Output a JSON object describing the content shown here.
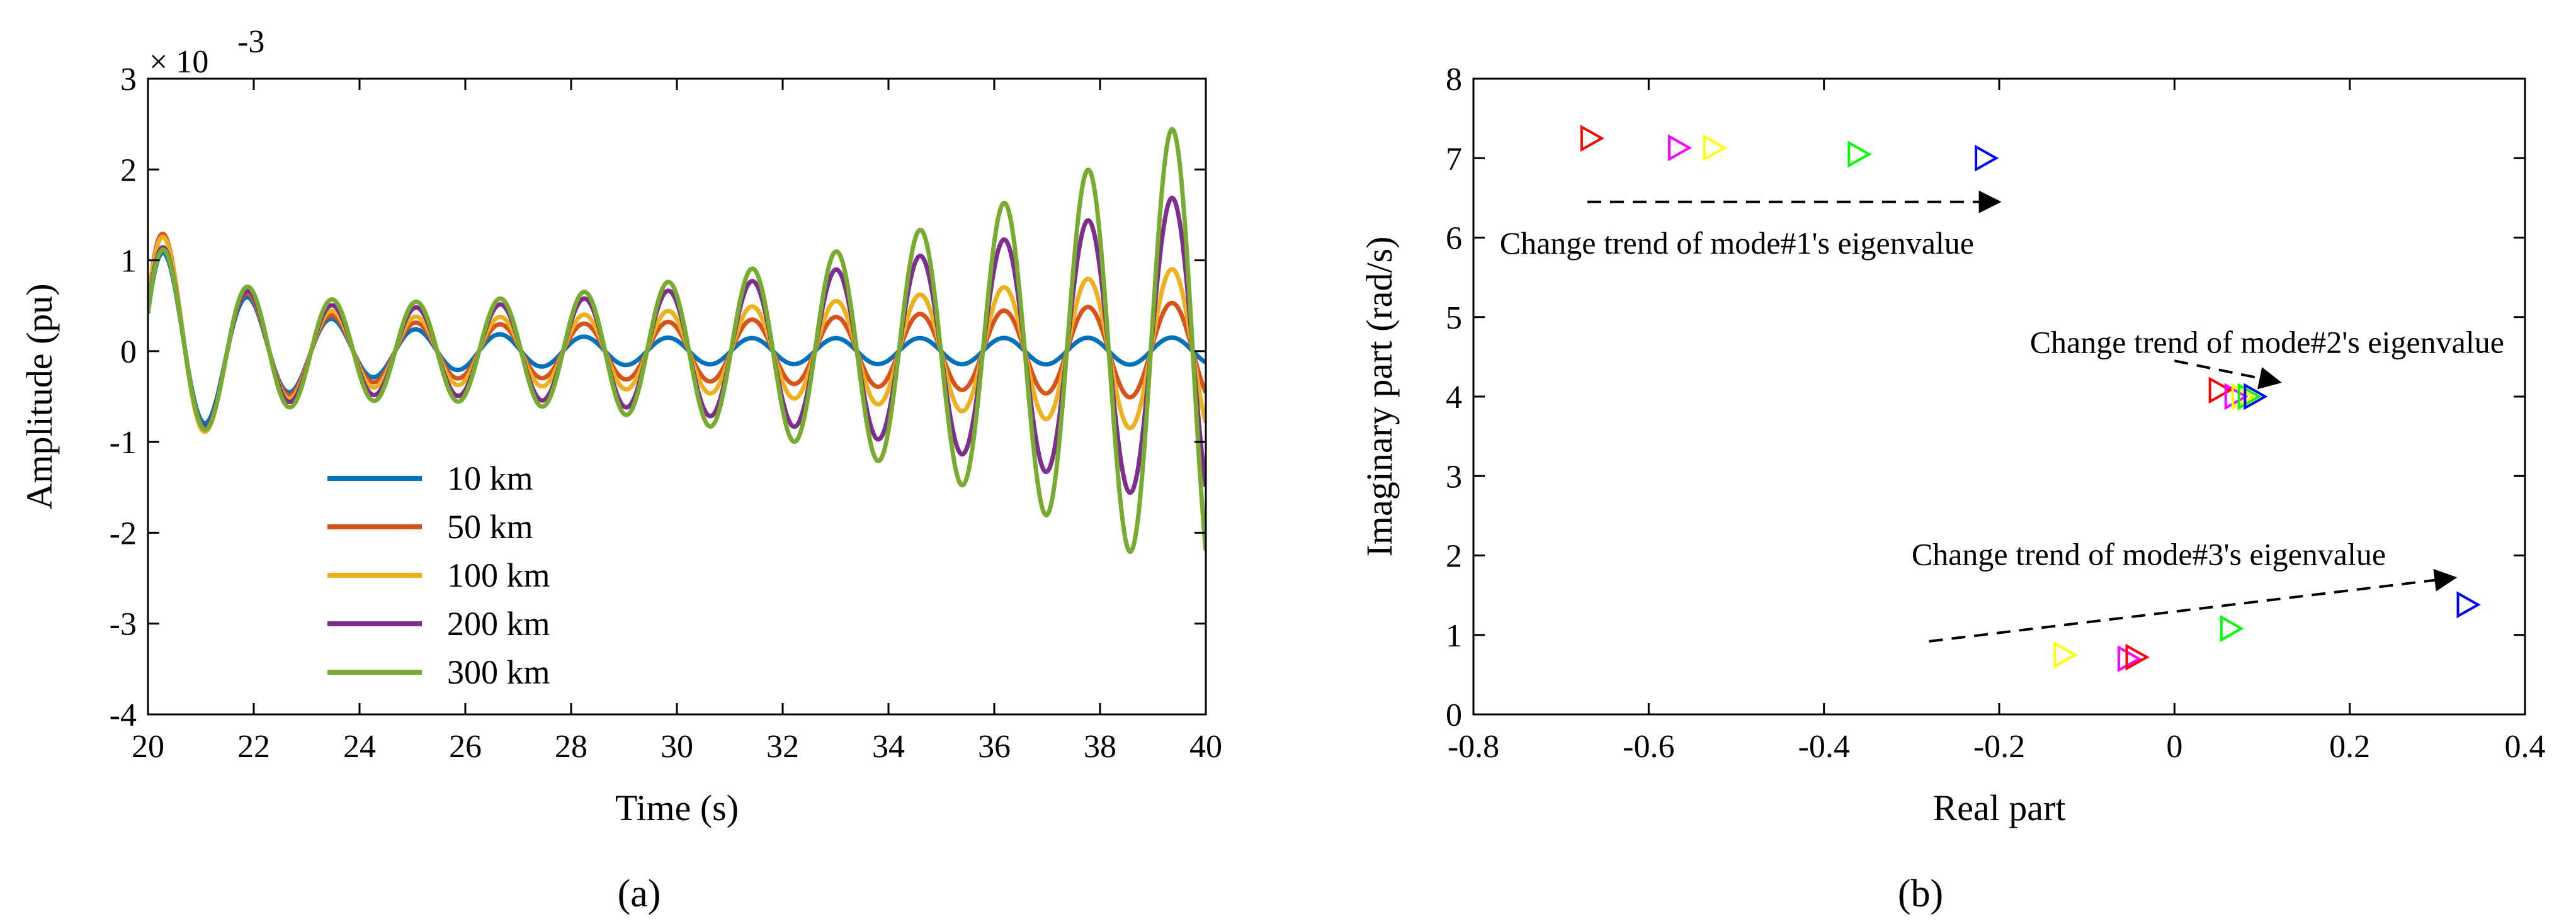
{
  "chart_data": [
    {
      "type": "line",
      "panel_label": "(a)",
      "title": "",
      "xlabel": "Time (s)",
      "ylabel": "Amplitude (pu)",
      "y_exponent_label": "× 10",
      "y_exponent_power": "-3",
      "xlim": [
        20,
        40
      ],
      "ylim": [
        -4,
        3
      ],
      "xticks": [
        20,
        22,
        24,
        26,
        28,
        30,
        32,
        34,
        36,
        38,
        40
      ],
      "yticks": [
        -4,
        -3,
        -2,
        -1,
        0,
        1,
        2,
        3
      ],
      "grid": false,
      "legend_position": "lower-left",
      "series": [
        {
          "name": "10 km",
          "color": "#0072BD",
          "amplitude_start": 1.1,
          "amplitude_end": 0.15,
          "amplitude_min": 0.12,
          "frequency_hz": 0.63,
          "decay_per_s": 0.45,
          "growth_per_s": 0.0,
          "phase": 0.0
        },
        {
          "name": "50 km",
          "color": "#D95319",
          "amplitude_start": 1.3,
          "amplitude_end": 0.55,
          "amplitude_min": 0.2,
          "frequency_hz": 0.63,
          "decay_per_s": 0.6,
          "growth_per_s": 0.055,
          "phase": 0.0
        },
        {
          "name": "100 km",
          "color": "#EDB120",
          "amplitude_start": 1.2,
          "amplitude_end": 0.95,
          "amplitude_min": 0.25,
          "frequency_hz": 0.63,
          "decay_per_s": 0.6,
          "growth_per_s": 0.075,
          "phase": 0.0
        },
        {
          "name": "200 km",
          "color": "#7E2F8E",
          "amplitude_start": 1.0,
          "amplitude_end": 1.8,
          "amplitude_min": 0.3,
          "frequency_hz": 0.63,
          "decay_per_s": 0.6,
          "growth_per_s": 0.095,
          "phase": 0.0
        },
        {
          "name": "300 km",
          "color": "#77AC30",
          "amplitude_start": 0.8,
          "amplitude_end": 2.65,
          "amplitude_min": 0.45,
          "frequency_hz": 0.63,
          "decay_per_s": 0.6,
          "growth_per_s": 0.105,
          "phase": 0.0
        }
      ]
    },
    {
      "type": "scatter",
      "panel_label": "(b)",
      "title": "",
      "xlabel": "Real part",
      "ylabel": "Imaginary part (rad/s)",
      "xlim": [
        -0.8,
        0.4
      ],
      "ylim": [
        0,
        8
      ],
      "xticks": [
        -0.8,
        -0.6,
        -0.4,
        -0.2,
        0,
        0.2,
        0.4
      ],
      "xtick_labels": [
        "-0.8",
        "-0.6",
        "-0.4",
        "-0.2",
        "0",
        "0.2",
        "0.4"
      ],
      "yticks": [
        0,
        1,
        2,
        3,
        4,
        5,
        6,
        7,
        8
      ],
      "grid": false,
      "marker": "triangle-right",
      "points": [
        {
          "x": -0.665,
          "y": 7.25,
          "color": "#FF0000"
        },
        {
          "x": -0.565,
          "y": 7.13,
          "color": "#FF00FF"
        },
        {
          "x": -0.525,
          "y": 7.13,
          "color": "#FFFF00"
        },
        {
          "x": -0.36,
          "y": 7.05,
          "color": "#00FF00"
        },
        {
          "x": -0.215,
          "y": 7.0,
          "color": "#0000FF"
        },
        {
          "x": 0.052,
          "y": 4.08,
          "color": "#FF0000"
        },
        {
          "x": 0.07,
          "y": 4.0,
          "color": "#FF00FF"
        },
        {
          "x": 0.078,
          "y": 4.0,
          "color": "#FFFF00"
        },
        {
          "x": 0.085,
          "y": 4.0,
          "color": "#00FF00"
        },
        {
          "x": 0.092,
          "y": 4.0,
          "color": "#0000FF"
        },
        {
          "x": -0.125,
          "y": 0.75,
          "color": "#FFFF00"
        },
        {
          "x": -0.052,
          "y": 0.7,
          "color": "#FF00FF"
        },
        {
          "x": -0.043,
          "y": 0.72,
          "color": "#FF0000"
        },
        {
          "x": 0.065,
          "y": 1.08,
          "color": "#00FF00"
        },
        {
          "x": 0.335,
          "y": 1.38,
          "color": "#0000FF"
        }
      ],
      "annotations": [
        {
          "text": "Change trend of mode#1's eigenvalue",
          "text_x": -0.77,
          "text_y": 5.8,
          "arrow_from": [
            -0.67,
            6.45
          ],
          "arrow_to": [
            -0.2,
            6.45
          ]
        },
        {
          "text": "Change trend of mode#2's eigenvalue",
          "text_x": -0.165,
          "text_y": 4.55,
          "arrow_from": [
            0.0,
            4.45
          ],
          "arrow_to": [
            0.12,
            4.18
          ]
        },
        {
          "text": "Change trend of mode#3's eigenvalue",
          "text_x": -0.3,
          "text_y": 1.88,
          "arrow_from": [
            -0.28,
            0.92
          ],
          "arrow_to": [
            0.32,
            1.72
          ]
        }
      ]
    }
  ]
}
